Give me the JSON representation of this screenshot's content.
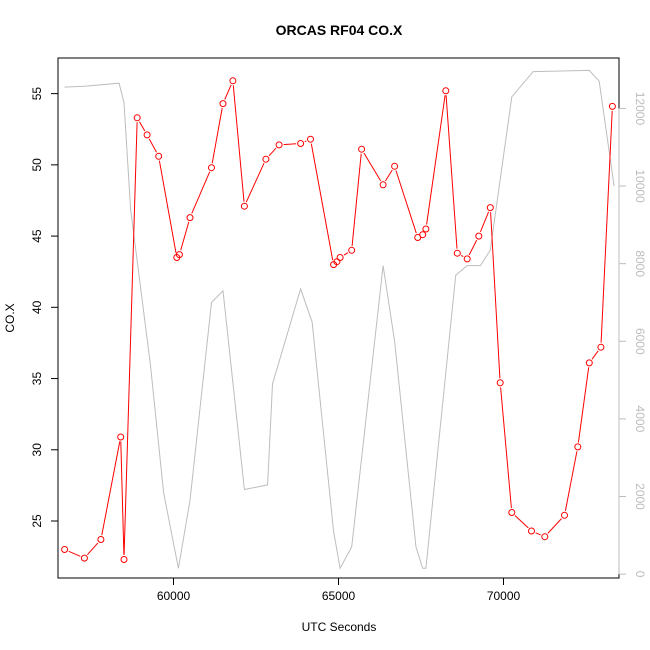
{
  "chart_data": {
    "type": "line",
    "title": "ORCAS RF04 CO.X",
    "xlabel": "UTC Seconds",
    "ylabel": "CO.X",
    "xlim": [
      56500,
      73500
    ],
    "ylim": [
      21,
      57.5
    ],
    "y2lim": [
      -100,
      13300
    ],
    "x_ticks": [
      60000,
      65000,
      70000
    ],
    "y_ticks": [
      25,
      30,
      35,
      40,
      45,
      50,
      55
    ],
    "y2_ticks": [
      0,
      2000,
      4000,
      6000,
      8000,
      10000,
      12000
    ],
    "grid": false,
    "series": [
      {
        "role": "primary",
        "axis": "left",
        "color": "#ff0000",
        "style": "line+points",
        "x": [
          56700,
          57300,
          57800,
          58400,
          58500,
          58900,
          59200,
          59550,
          60100,
          60180,
          60500,
          61150,
          61500,
          61800,
          62150,
          62800,
          63200,
          63850,
          64150,
          64850,
          64950,
          65050,
          65400,
          65700,
          66350,
          66700,
          67400,
          67550,
          67650,
          68250,
          68600,
          68900,
          69250,
          69600,
          69900,
          70250,
          70850,
          71250,
          71850,
          72250,
          72600,
          72950,
          73300
        ],
        "y": [
          23.0,
          22.4,
          23.7,
          30.9,
          22.3,
          53.3,
          52.1,
          50.6,
          43.5,
          43.7,
          46.3,
          49.8,
          54.3,
          55.9,
          47.1,
          50.4,
          51.4,
          51.5,
          51.8,
          43.0,
          43.2,
          43.5,
          44.0,
          51.1,
          48.6,
          49.9,
          44.9,
          45.1,
          45.5,
          55.2,
          43.8,
          43.4,
          45.0,
          47.0,
          34.7,
          25.6,
          24.3,
          23.9,
          25.4,
          30.2,
          36.1,
          37.2,
          54.1
        ]
      },
      {
        "role": "secondary",
        "axis": "right",
        "color": "#bdbdbd",
        "style": "line",
        "x": [
          56700,
          57300,
          58350,
          58500,
          58700,
          59300,
          59700,
          60150,
          60500,
          61150,
          61500,
          62150,
          62850,
          63000,
          63850,
          64200,
          64850,
          65050,
          65400,
          66350,
          66700,
          67350,
          67550,
          67650,
          68550,
          68900,
          69300,
          69600,
          70250,
          70900,
          72600,
          72900,
          73350
        ],
        "y": [
          12550,
          12570,
          12650,
          12150,
          9400,
          5400,
          2100,
          150,
          1900,
          7000,
          7300,
          2180,
          2300,
          4900,
          7350,
          6500,
          1100,
          150,
          700,
          7950,
          6000,
          700,
          150,
          150,
          7700,
          7950,
          7950,
          8350,
          12300,
          12950,
          12980,
          12700,
          10000
        ]
      }
    ]
  }
}
